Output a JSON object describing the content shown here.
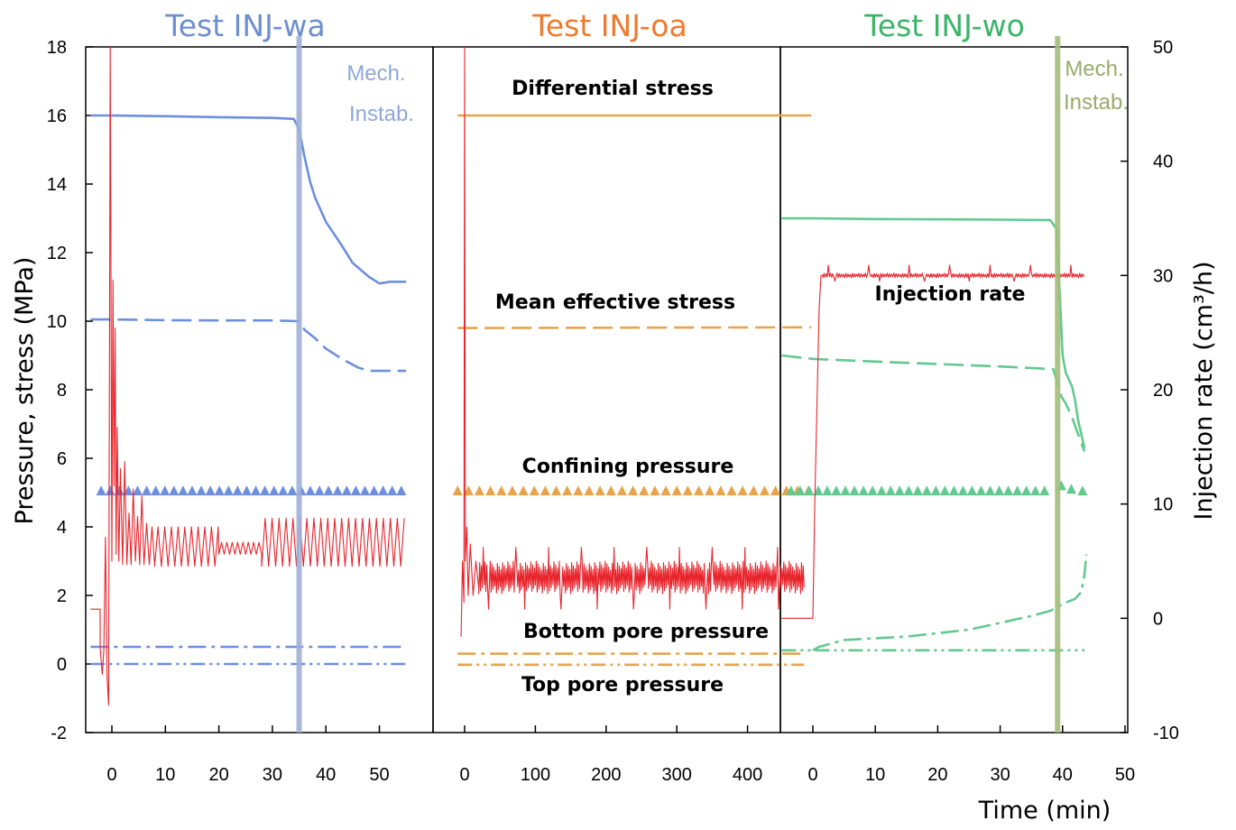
{
  "chart_data": [
    {
      "type": "line",
      "panel": "wa",
      "title": "Test INJ-wa",
      "title_color": "#6d8fcf",
      "ylabel": "Pressure, stress (MPa)",
      "ylim": [
        -2,
        18
      ],
      "yticks": [
        -2,
        0,
        2,
        4,
        6,
        8,
        10,
        12,
        14,
        16,
        18
      ],
      "xlim": [
        -4,
        56
      ],
      "xticks": [
        0,
        10,
        20,
        30,
        40,
        50
      ],
      "color": "#6d8fe0",
      "mech_x": 35,
      "mech_label": [
        "Mech.",
        "Instab."
      ],
      "mech_color": "#9db0d6",
      "series": [
        {
          "style": "solid",
          "x": [
            -4,
            0,
            10,
            20,
            30,
            34,
            35,
            36,
            37,
            38,
            40,
            43,
            45,
            48,
            50,
            52,
            55
          ],
          "y": [
            16.0,
            16.0,
            15.98,
            15.95,
            15.93,
            15.9,
            15.6,
            14.8,
            14.1,
            13.6,
            12.9,
            12.2,
            11.7,
            11.3,
            11.1,
            11.15,
            11.15
          ]
        },
        {
          "style": "dash",
          "x": [
            -4,
            0,
            10,
            20,
            30,
            35,
            36,
            38,
            40,
            43,
            46,
            48,
            50,
            55
          ],
          "y": [
            10.05,
            10.05,
            10.03,
            10.02,
            10.02,
            10.0,
            9.75,
            9.5,
            9.2,
            8.9,
            8.65,
            8.55,
            8.55,
            8.55
          ]
        },
        {
          "style": "triangle",
          "x_start": -2,
          "x_end": 55,
          "step": 1.7,
          "y": 5.05
        },
        {
          "style": "dashdot",
          "x": [
            -4,
            55
          ],
          "y": [
            0.5,
            0.5
          ]
        },
        {
          "style": "dashdotdot",
          "x": [
            -4,
            55
          ],
          "y": [
            0.0,
            0.0
          ]
        }
      ],
      "rate": {
        "x": [
          -4,
          -2.2,
          -2.2,
          -1.8,
          -1.5,
          -1.2,
          -0.9,
          -0.6,
          -0.3,
          0,
          0.2,
          0.4,
          0.6,
          0.8,
          1.0,
          1.3,
          1.6,
          2.0,
          2.4,
          2.8,
          3.2,
          3.6,
          4.0,
          4.4,
          4.8,
          5.2,
          5.6,
          6.0,
          6.5,
          7.0,
          7.5,
          8.0
        ],
        "y": [
          1.6,
          1.6,
          0.5,
          -0.3,
          0.4,
          3.7,
          -0.4,
          -1.2,
          18,
          3.0,
          11.2,
          5.2,
          9.8,
          3.2,
          6.9,
          3.0,
          5.7,
          2.9,
          5.9,
          2.9,
          4.4,
          2.9,
          5.1,
          3.0,
          4.3,
          2.9,
          4.9,
          2.9,
          4.1,
          2.9,
          4.0,
          2.9
        ],
        "osc": [
          {
            "x0": 8,
            "x1": 20,
            "period": 1.25,
            "lo": 2.85,
            "hi": 4.0
          },
          {
            "x0": 20,
            "x1": 28,
            "period": 1.0,
            "lo": 3.2,
            "hi": 3.55
          },
          {
            "x0": 28,
            "x1": 55,
            "period": 1.3,
            "lo": 2.85,
            "hi": 4.25
          }
        ]
      }
    },
    {
      "type": "line",
      "panel": "oa",
      "title": "Test INJ-oa",
      "title_color": "#f07a2c",
      "ylim": [
        -2,
        18
      ],
      "xlim": [
        -30,
        510
      ],
      "xticks": [
        0,
        100,
        200,
        300,
        400
      ],
      "color": "#e8a34c",
      "annotations": [
        "Differential stress",
        "Mean effective stress",
        "Confining pressure",
        "Bottom pore pressure",
        "Top pore pressure"
      ],
      "series": [
        {
          "style": "solid",
          "x": [
            -10,
            490
          ],
          "y": [
            16.0,
            16.0
          ]
        },
        {
          "style": "dash",
          "x": [
            -10,
            490
          ],
          "y": [
            9.8,
            9.82
          ]
        },
        {
          "style": "triangle",
          "x_start": -10,
          "x_end": 490,
          "step": 15.5,
          "y": 5.05
        },
        {
          "style": "dashdot",
          "x": [
            -10,
            480
          ],
          "y": [
            0.3,
            0.3
          ]
        },
        {
          "style": "dashdotdot",
          "x": [
            -10,
            480
          ],
          "y": [
            -0.02,
            -0.02
          ]
        }
      ],
      "rate": {
        "x": [
          -5,
          -3,
          -1,
          0,
          1,
          3,
          5,
          8,
          12,
          16,
          20
        ],
        "y": [
          0.8,
          3.0,
          1.8,
          18,
          3.0,
          4.0,
          2.0,
          3.5,
          2.0,
          3.0,
          2.2
        ],
        "noise": {
          "x0": 20,
          "x1": 480,
          "period": 2.5,
          "lo": 2.05,
          "hi": 3.0,
          "spike_lo": 1.6,
          "spike_hi": 3.4
        }
      }
    },
    {
      "type": "line",
      "panel": "wo",
      "title": "Test INJ-wo",
      "title_color": "#3ab568",
      "y2label": "Injection rate (cm³/h)",
      "y2lim": [
        -10,
        50
      ],
      "y2ticks": [
        -10,
        0,
        10,
        20,
        30,
        40,
        50
      ],
      "xlim": [
        -5,
        50
      ],
      "xticks": [
        0,
        10,
        20,
        30,
        40,
        50
      ],
      "xlabel": "Time (min)",
      "color": "#62c98f",
      "mech_x": 39.2,
      "mech_label": [
        "Mech.",
        "Instab."
      ],
      "mech_color": "#a3be7a",
      "rate_label": "Injection rate",
      "series": [
        {
          "style": "solid",
          "x": [
            -5,
            0,
            10,
            20,
            30,
            38,
            39,
            39.5,
            40,
            40.5,
            41,
            41.5,
            42,
            42.5,
            43,
            43.5
          ],
          "y": [
            13.0,
            13.0,
            12.98,
            12.97,
            12.96,
            12.95,
            12.7,
            11.0,
            9.0,
            8.5,
            8.3,
            8.1,
            7.7,
            7.1,
            6.7,
            6.3
          ]
        },
        {
          "style": "dash",
          "x": [
            -5,
            0,
            10,
            20,
            30,
            38.5,
            39.2,
            39.8,
            40.5,
            41.5,
            42.5,
            43.5
          ],
          "y": [
            9.0,
            8.9,
            8.82,
            8.75,
            8.68,
            8.6,
            8.2,
            7.8,
            7.6,
            7.2,
            6.7,
            6.2
          ]
        },
        {
          "style": "triangle",
          "x_start": -3.5,
          "x_end": 38.5,
          "step": 1.45,
          "y": 5.05,
          "extra": [
            [
              39.8,
              5.2
            ],
            [
              41.4,
              5.1
            ],
            [
              43.2,
              5.05
            ]
          ]
        },
        {
          "style": "dashdot",
          "x": [
            0,
            1,
            2,
            5,
            10,
            15,
            20,
            25,
            30,
            35,
            38,
            40,
            42,
            43,
            43.5,
            43.8
          ],
          "y": [
            0.4,
            0.5,
            0.55,
            0.7,
            0.75,
            0.8,
            0.9,
            1.0,
            1.2,
            1.4,
            1.55,
            1.75,
            1.9,
            2.1,
            2.6,
            3.2
          ]
        },
        {
          "style": "dashdotdot",
          "x": [
            -5,
            43.5
          ],
          "y": [
            0.4,
            0.4
          ]
        }
      ],
      "rate": {
        "x": [
          -5,
          0,
          0.3,
          1.0,
          1.3,
          1.6
        ],
        "y": [
          0.0,
          0.0,
          10.0,
          27.0,
          30.0,
          30.0
        ],
        "noise": {
          "x0": 1.6,
          "x1": 43.5,
          "period": 0.35,
          "lo": 29.8,
          "hi": 30.2,
          "spike_lo": 29.5,
          "spike_hi": 30.9
        }
      }
    }
  ]
}
